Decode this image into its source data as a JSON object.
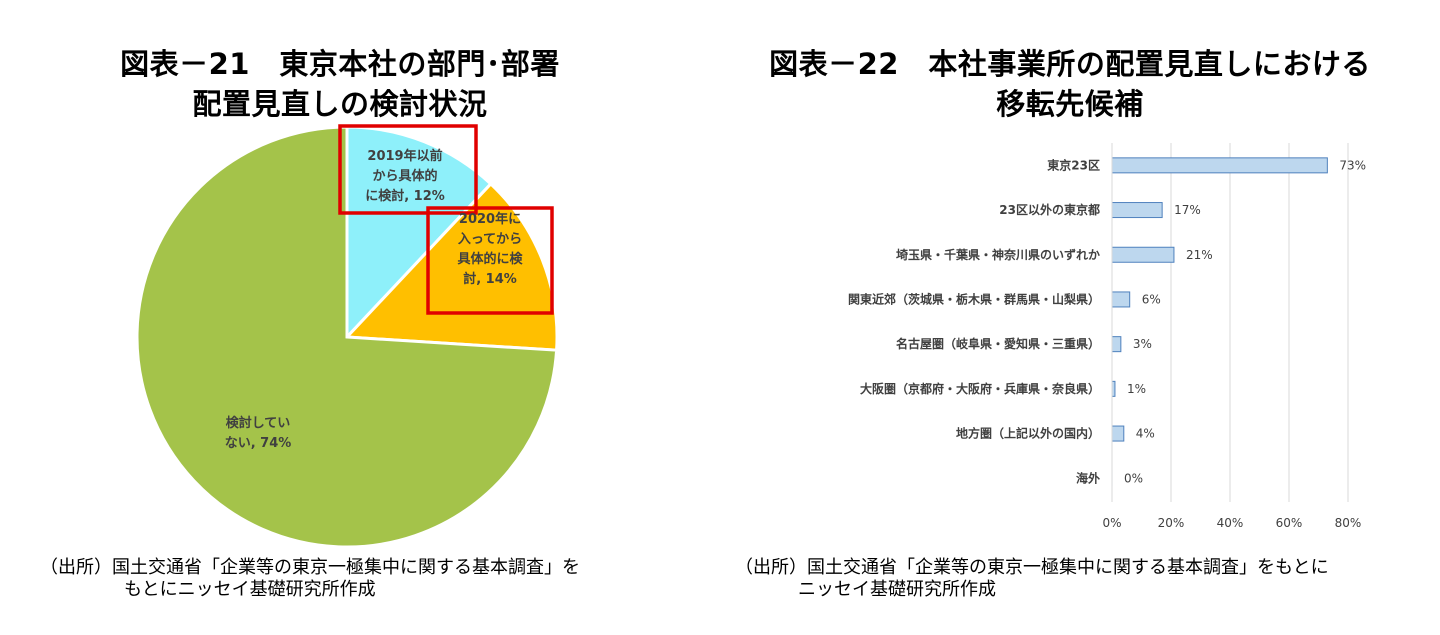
{
  "charts": {
    "left": {
      "title_line1": "図表－21　東京本社の部門･部署",
      "title_line2": "配置見直しの検討状況",
      "source_line1": "（出所）国土交通省「企業等の東京一極集中に関する基本調査」を",
      "source_line2": "もとにニッセイ基礎研究所作成"
    },
    "right": {
      "title_line1": "図表－22　本社事業所の配置見直しにおける",
      "title_line2": "移転先候補",
      "source_line1": "（出所）国土交通省「企業等の東京一極集中に関する基本調査」をもとに",
      "source_line2": "ニッセイ基礎研究所作成"
    }
  },
  "chart_data": [
    {
      "type": "pie",
      "slices": [
        {
          "label_lines": [
            "2019年以前",
            "から具体的",
            "に検討, 12%"
          ],
          "value": 12,
          "color": "#8ef0fa",
          "highlighted": true
        },
        {
          "label_lines": [
            "2020年に",
            "入ってから",
            "具体的に検",
            "討, 14%"
          ],
          "value": 14,
          "color": "#ffbf00",
          "highlighted": true
        },
        {
          "label_lines": [
            "検討してい",
            "ない, 74%"
          ],
          "value": 74,
          "color": "#a4c34a",
          "highlighted": false
        }
      ],
      "start_angle_deg": 0,
      "direction": "clockwise",
      "highlight_color": "#e00000"
    },
    {
      "type": "bar",
      "orientation": "horizontal",
      "categories": [
        "東京23区",
        "23区以外の東京都",
        "埼玉県・千葉県・神奈川県のいずれか",
        "関東近郊（茨城県・栃木県・群馬県・山梨県）",
        "名古屋圏（岐阜県・愛知県・三重県）",
        "大阪圏（京都府・大阪府・兵庫県・奈良県）",
        "地方圏（上記以外の国内）",
        "海外"
      ],
      "values": [
        73,
        17,
        21,
        6,
        3,
        1,
        4,
        0
      ],
      "value_labels": [
        "73%",
        "17%",
        "21%",
        "6%",
        "3%",
        "1%",
        "4%",
        "0%"
      ],
      "xlim": [
        0,
        80
      ],
      "xticks": [
        0,
        20,
        40,
        60,
        80
      ],
      "xtick_labels": [
        "0%",
        "20%",
        "40%",
        "60%",
        "80%"
      ],
      "grid": true,
      "bar_fill": "#bdd7ee",
      "bar_stroke": "#4f81bd"
    }
  ]
}
